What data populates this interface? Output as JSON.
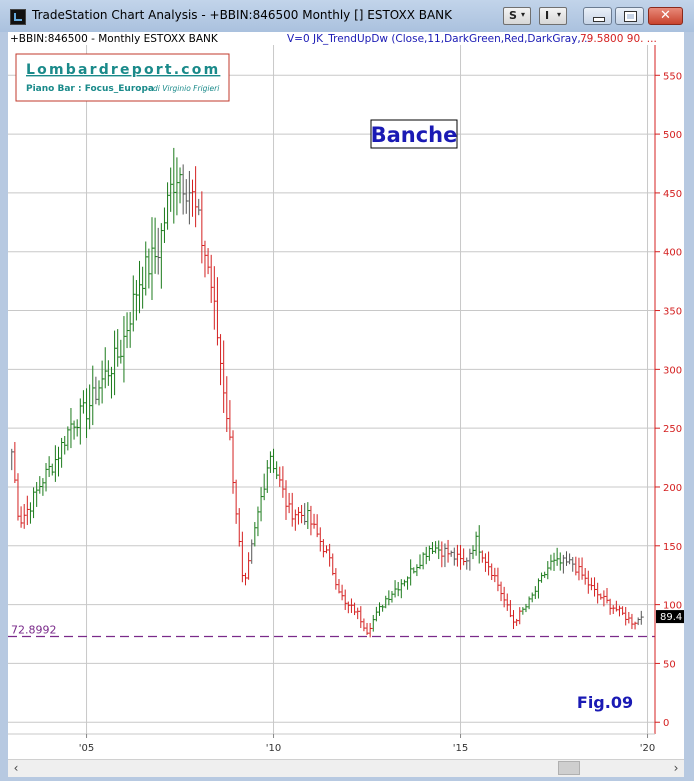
{
  "window": {
    "title": "TradeStation Chart Analysis - +BBIN:846500 Monthly [] ESTOXX BANK",
    "btn_s": "S",
    "btn_i": "I"
  },
  "header": {
    "symbol_line": "+BBIN:846500 - Monthly  ESTOXX BANK",
    "indicator_line": "V=0  JK_TrendUpDw  (Close,11,DarkGreen,Red,DarkGray,...",
    "indicator_values": "79.5800  90.  ..."
  },
  "watermark": {
    "site": "Lombardreport.com",
    "subtitle": "Piano Bar : Focus_Europa",
    "author": "di Virginio Frigieri"
  },
  "annotations": {
    "banner": "Banche",
    "fig": "Fig.09",
    "support_label": "72.8992",
    "last_price": "89.4"
  },
  "colors": {
    "up": "#1a7a1a",
    "down": "#d42020",
    "neutral": "#555555",
    "axis": "#d42020",
    "support": "#7a2a8a",
    "banner_text": "#1a1ab4",
    "watermark": "#1a8a8a"
  },
  "chart_data": {
    "type": "bar",
    "title": "Banche",
    "xlabel": "",
    "ylabel": "",
    "ylim": [
      -10,
      580
    ],
    "xlim": [
      2002.9,
      2020.2
    ],
    "y_ticks": [
      0,
      50,
      100,
      150,
      200,
      250,
      300,
      350,
      400,
      450,
      500,
      550
    ],
    "x_ticks": [
      {
        "value": 2005,
        "label": "'05"
      },
      {
        "value": 2010,
        "label": "'10"
      },
      {
        "value": 2015,
        "label": "'15"
      },
      {
        "value": 2020,
        "label": "'20"
      }
    ],
    "support_level": 72.8992,
    "last_value": 89.4,
    "grid": true,
    "series": [
      {
        "name": "ESTOXX BANK",
        "anchors": [
          [
            2003.0,
            230
          ],
          [
            2003.2,
            170
          ],
          [
            2003.5,
            185
          ],
          [
            2003.8,
            205
          ],
          [
            2004.2,
            225
          ],
          [
            2004.6,
            255
          ],
          [
            2005.0,
            265
          ],
          [
            2005.4,
            290
          ],
          [
            2005.9,
            315
          ],
          [
            2006.4,
            375
          ],
          [
            2006.9,
            400
          ],
          [
            2007.3,
            460
          ],
          [
            2007.45,
            470
          ],
          [
            2007.8,
            450
          ],
          [
            2008.3,
            380
          ],
          [
            2008.8,
            250
          ],
          [
            2009.2,
            110
          ],
          [
            2009.6,
            180
          ],
          [
            2009.9,
            230
          ],
          [
            2010.4,
            180
          ],
          [
            2010.9,
            175
          ],
          [
            2011.4,
            145
          ],
          [
            2011.9,
            100
          ],
          [
            2012.2,
            95
          ],
          [
            2012.5,
            78
          ],
          [
            2013.0,
            105
          ],
          [
            2013.6,
            125
          ],
          [
            2014.2,
            150
          ],
          [
            2014.6,
            145
          ],
          [
            2015.1,
            135
          ],
          [
            2015.4,
            155
          ],
          [
            2015.9,
            125
          ],
          [
            2016.4,
            85
          ],
          [
            2016.8,
            100
          ],
          [
            2017.4,
            135
          ],
          [
            2018.0,
            135
          ],
          [
            2018.6,
            110
          ],
          [
            2019.2,
            95
          ],
          [
            2019.6,
            85
          ],
          [
            2019.9,
            89.4
          ]
        ]
      }
    ]
  }
}
